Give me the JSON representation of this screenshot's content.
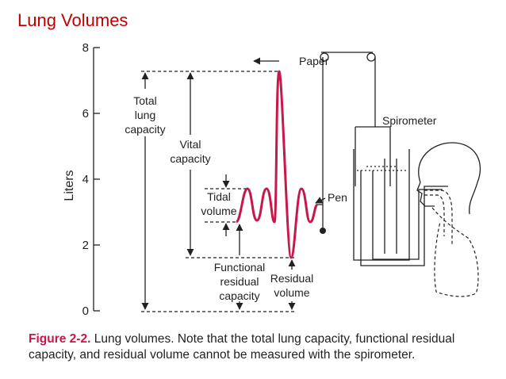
{
  "header": {
    "title": "Lung Volumes"
  },
  "axis": {
    "label": "Liters",
    "range": [
      0,
      8
    ],
    "ticks": [
      0,
      2,
      4,
      6,
      8
    ]
  },
  "labels": {
    "paper": "Paper",
    "total_lung_capacity": [
      "Total",
      "lung",
      "capacity"
    ],
    "vital_capacity": [
      "Vital",
      "capacity"
    ],
    "tidal_volume": [
      "Tidal",
      "volume"
    ],
    "functional_residual_capacity": [
      "Functional",
      "residual",
      "capacity"
    ],
    "residual_volume": [
      "Residual",
      "volume"
    ],
    "spirometer": "Spirometer",
    "pen": "Pen"
  },
  "caption": {
    "figure": "Figure 2-2.",
    "lines": [
      "Lung volumes. Note that the total lung capacity, functional residual",
      "capacity, and residual volume cannot be measured with the spirometer."
    ]
  }
}
